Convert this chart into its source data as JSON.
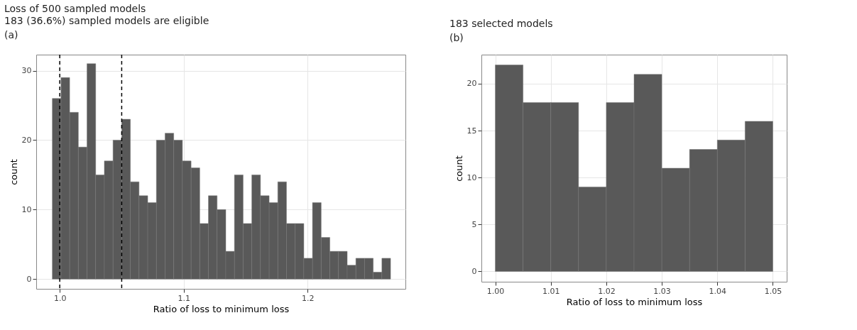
{
  "chart_data": [
    {
      "type": "histogram",
      "title": "Loss of 500 sampled models",
      "subtitle": "183 (36.6%) sampled models are eligible",
      "xlabel": "Ratio of loss to minimum loss",
      "ylabel": "count",
      "annotations": [
        "(a)"
      ],
      "bins": [
        0.994,
        1.001,
        1.008,
        1.015,
        1.022,
        1.029,
        1.036,
        1.043,
        1.05,
        1.057,
        1.064,
        1.071,
        1.078,
        1.085,
        1.092,
        1.099,
        1.106,
        1.113,
        1.12,
        1.127,
        1.134,
        1.141,
        1.148,
        1.155,
        1.162,
        1.169,
        1.176,
        1.183,
        1.19,
        1.197,
        1.204,
        1.211,
        1.218,
        1.225,
        1.232,
        1.239,
        1.246,
        1.253,
        1.26,
        1.267
      ],
      "values": [
        26,
        29,
        24,
        19,
        31,
        15,
        17,
        20,
        23,
        14,
        12,
        11,
        20,
        21,
        20,
        17,
        16,
        8,
        12,
        10,
        4,
        15,
        8,
        15,
        12,
        11,
        14,
        8,
        8,
        3,
        11,
        6,
        4,
        4,
        2,
        3,
        3,
        1,
        3
      ],
      "color": "#595959",
      "xlim": [
        0.981,
        1.279
      ],
      "xticks": [
        {
          "value": 1.0,
          "label": "1.0"
        },
        {
          "value": 1.1,
          "label": "1.1"
        },
        {
          "value": 1.2,
          "label": "1.2"
        }
      ],
      "ylim": [
        -1.4,
        32.3
      ],
      "yticks": [
        0,
        10,
        20,
        30
      ],
      "ref_lines": [
        {
          "axis": "x",
          "value": 1.0,
          "color": "#000000",
          "line_style": "dashed"
        },
        {
          "axis": "x",
          "value": 1.05,
          "color": "#000000",
          "line_style": "dashed"
        }
      ],
      "grid": true
    },
    {
      "type": "histogram",
      "title": "183 selected models",
      "xlabel": "Ratio of loss to minimum loss",
      "ylabel": "count",
      "annotations": [
        "(b)"
      ],
      "bins": [
        1.0,
        1.005,
        1.01,
        1.015,
        1.02,
        1.025,
        1.03,
        1.035,
        1.04,
        1.045,
        1.05
      ],
      "values": [
        22,
        18,
        18,
        9,
        18,
        21,
        11,
        13,
        14,
        16
      ],
      "color": "#595959",
      "xlim": [
        0.9975,
        1.0525
      ],
      "xticks": [
        {
          "value": 1.0,
          "label": "1.00"
        },
        {
          "value": 1.01,
          "label": "1.01"
        },
        {
          "value": 1.02,
          "label": "1.02"
        },
        {
          "value": 1.03,
          "label": "1.03"
        },
        {
          "value": 1.04,
          "label": "1.04"
        },
        {
          "value": 1.05,
          "label": "1.05"
        }
      ],
      "ylim": [
        -1.1,
        23.1
      ],
      "yticks": [
        0,
        5,
        10,
        15,
        20
      ],
      "grid": true
    }
  ]
}
